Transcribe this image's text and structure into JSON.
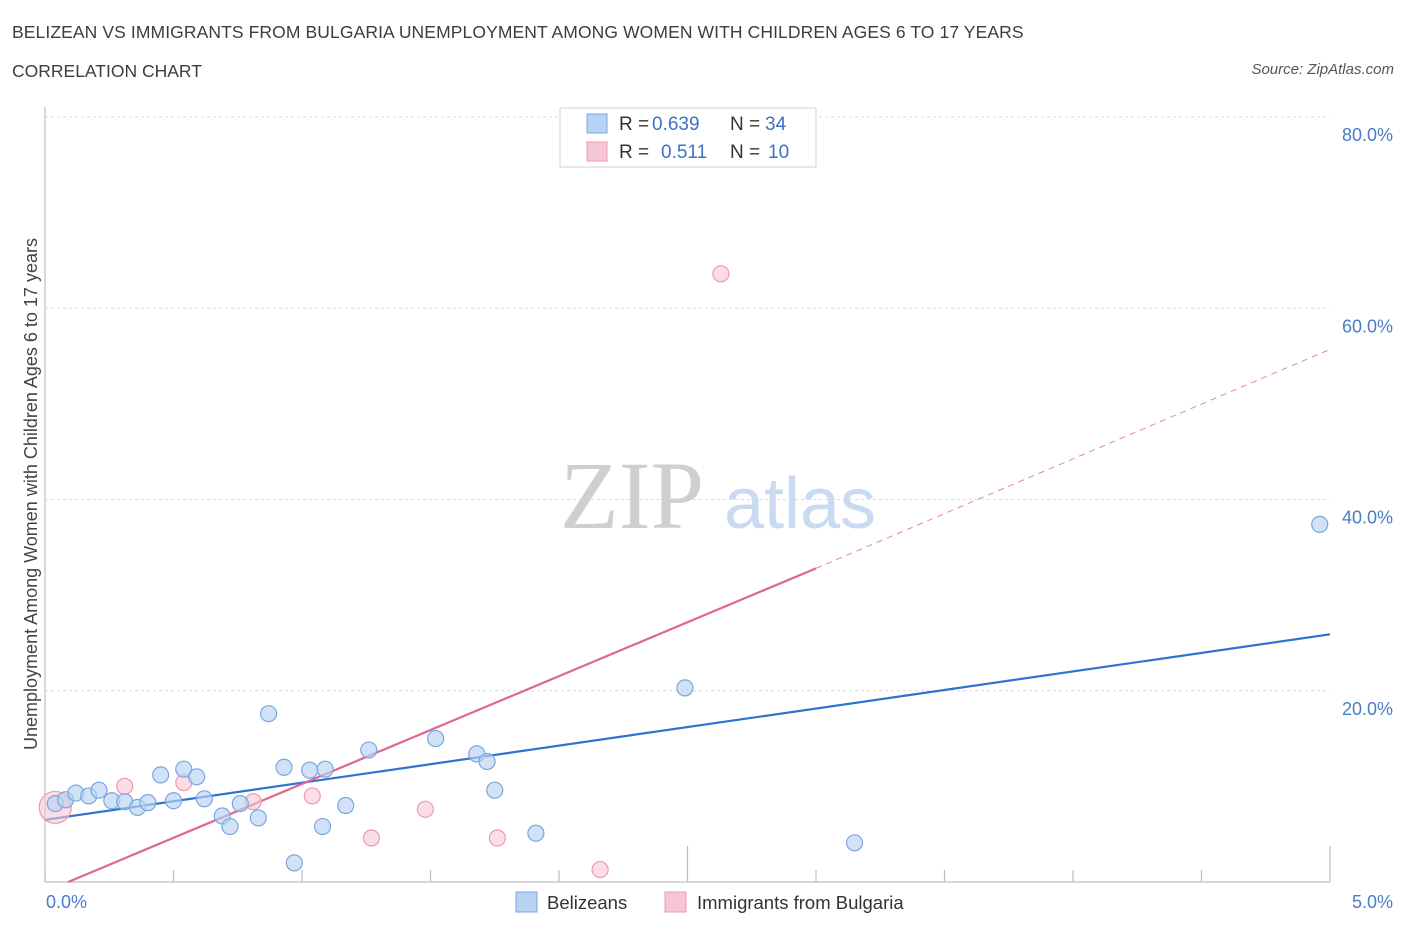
{
  "title": "BELIZEAN VS IMMIGRANTS FROM BULGARIA UNEMPLOYMENT AMONG WOMEN WITH CHILDREN AGES 6 TO 17 YEARS",
  "subtitle": "CORRELATION CHART",
  "source": "Source: ZipAtlas.com",
  "watermark": {
    "zip": "ZIP",
    "atlas": "atlas"
  },
  "legend_top": {
    "rows": [
      {
        "r_label": "R =",
        "r_value": "0.639",
        "n_label": "N =",
        "n_value": "34"
      },
      {
        "r_label": "R =",
        "r_value": "0.511",
        "n_label": "N =",
        "n_value": "10"
      }
    ]
  },
  "legend_bottom": [
    "Belizeans",
    "Immigrants from Bulgaria"
  ],
  "colors": {
    "blue_fill": "#b9d2f3",
    "blue_stroke": "#7aa6e0",
    "blue_line": "#2f73d0",
    "pink_fill": "#f7c6d4",
    "pink_stroke": "#ec9ab2",
    "pink_line": "#e0668f",
    "tick_text": "#4a7cc9",
    "grid": "#dcdcdc"
  },
  "chart_data": {
    "type": "scatter",
    "title": "BELIZEAN VS IMMIGRANTS FROM BULGARIA UNEMPLOYMENT AMONG WOMEN WITH CHILDREN AGES 6 TO 17 YEARS",
    "subtitle": "CORRELATION CHART",
    "xlabel": "",
    "ylabel": "Unemployment Among Women with Children Ages 6 to 17 years",
    "xlim": [
      0,
      5
    ],
    "ylim": [
      0,
      80
    ],
    "x_tick_labels": [
      "0.0%",
      "5.0%"
    ],
    "y_ticks": [
      20,
      40,
      60,
      80
    ],
    "y_tick_labels": [
      "20.0%",
      "40.0%",
      "60.0%",
      "80.0%"
    ],
    "grid": true,
    "legend_position": "top-center",
    "series": [
      {
        "name": "Belizeans",
        "r": 0.639,
        "n": 34,
        "points": [
          [
            0.04,
            8.2
          ],
          [
            0.08,
            8.6
          ],
          [
            0.12,
            9.3
          ],
          [
            0.17,
            9.0
          ],
          [
            0.21,
            9.6
          ],
          [
            0.26,
            8.5
          ],
          [
            0.31,
            8.4
          ],
          [
            0.36,
            7.8
          ],
          [
            0.4,
            8.3
          ],
          [
            0.45,
            11.2
          ],
          [
            0.5,
            8.5
          ],
          [
            0.54,
            11.8
          ],
          [
            0.59,
            11.0
          ],
          [
            0.62,
            8.7
          ],
          [
            0.69,
            6.9
          ],
          [
            0.72,
            5.8
          ],
          [
            0.76,
            8.2
          ],
          [
            0.83,
            6.7
          ],
          [
            0.87,
            17.6
          ],
          [
            0.93,
            12.0
          ],
          [
            0.97,
            2.0
          ],
          [
            1.03,
            11.7
          ],
          [
            1.08,
            5.8
          ],
          [
            1.09,
            11.8
          ],
          [
            1.17,
            8.0
          ],
          [
            1.26,
            13.8
          ],
          [
            1.52,
            15.0
          ],
          [
            1.68,
            13.4
          ],
          [
            1.72,
            12.6
          ],
          [
            1.75,
            9.6
          ],
          [
            1.91,
            5.1
          ],
          [
            2.49,
            20.3
          ],
          [
            3.15,
            4.1
          ],
          [
            4.96,
            37.4
          ]
        ],
        "trend": {
          "x": [
            0.0,
            5.0
          ],
          "y": [
            6.5,
            25.9
          ]
        }
      },
      {
        "name": "Immigrants from Bulgaria",
        "r": 0.511,
        "n": 10,
        "points": [
          [
            0.04,
            7.8
          ],
          [
            0.31,
            10.0
          ],
          [
            0.54,
            10.4
          ],
          [
            0.81,
            8.4
          ],
          [
            1.04,
            9.0
          ],
          [
            1.27,
            4.6
          ],
          [
            1.48,
            7.6
          ],
          [
            1.76,
            4.6
          ],
          [
            2.16,
            1.3
          ],
          [
            2.63,
            63.6
          ]
        ],
        "trend": {
          "x": [
            0.09,
            3.0
          ],
          "y": [
            0.0,
            32.8
          ]
        },
        "trend_extension": {
          "x": [
            3.0,
            5.0
          ],
          "y": [
            32.8,
            55.7
          ]
        }
      }
    ]
  }
}
